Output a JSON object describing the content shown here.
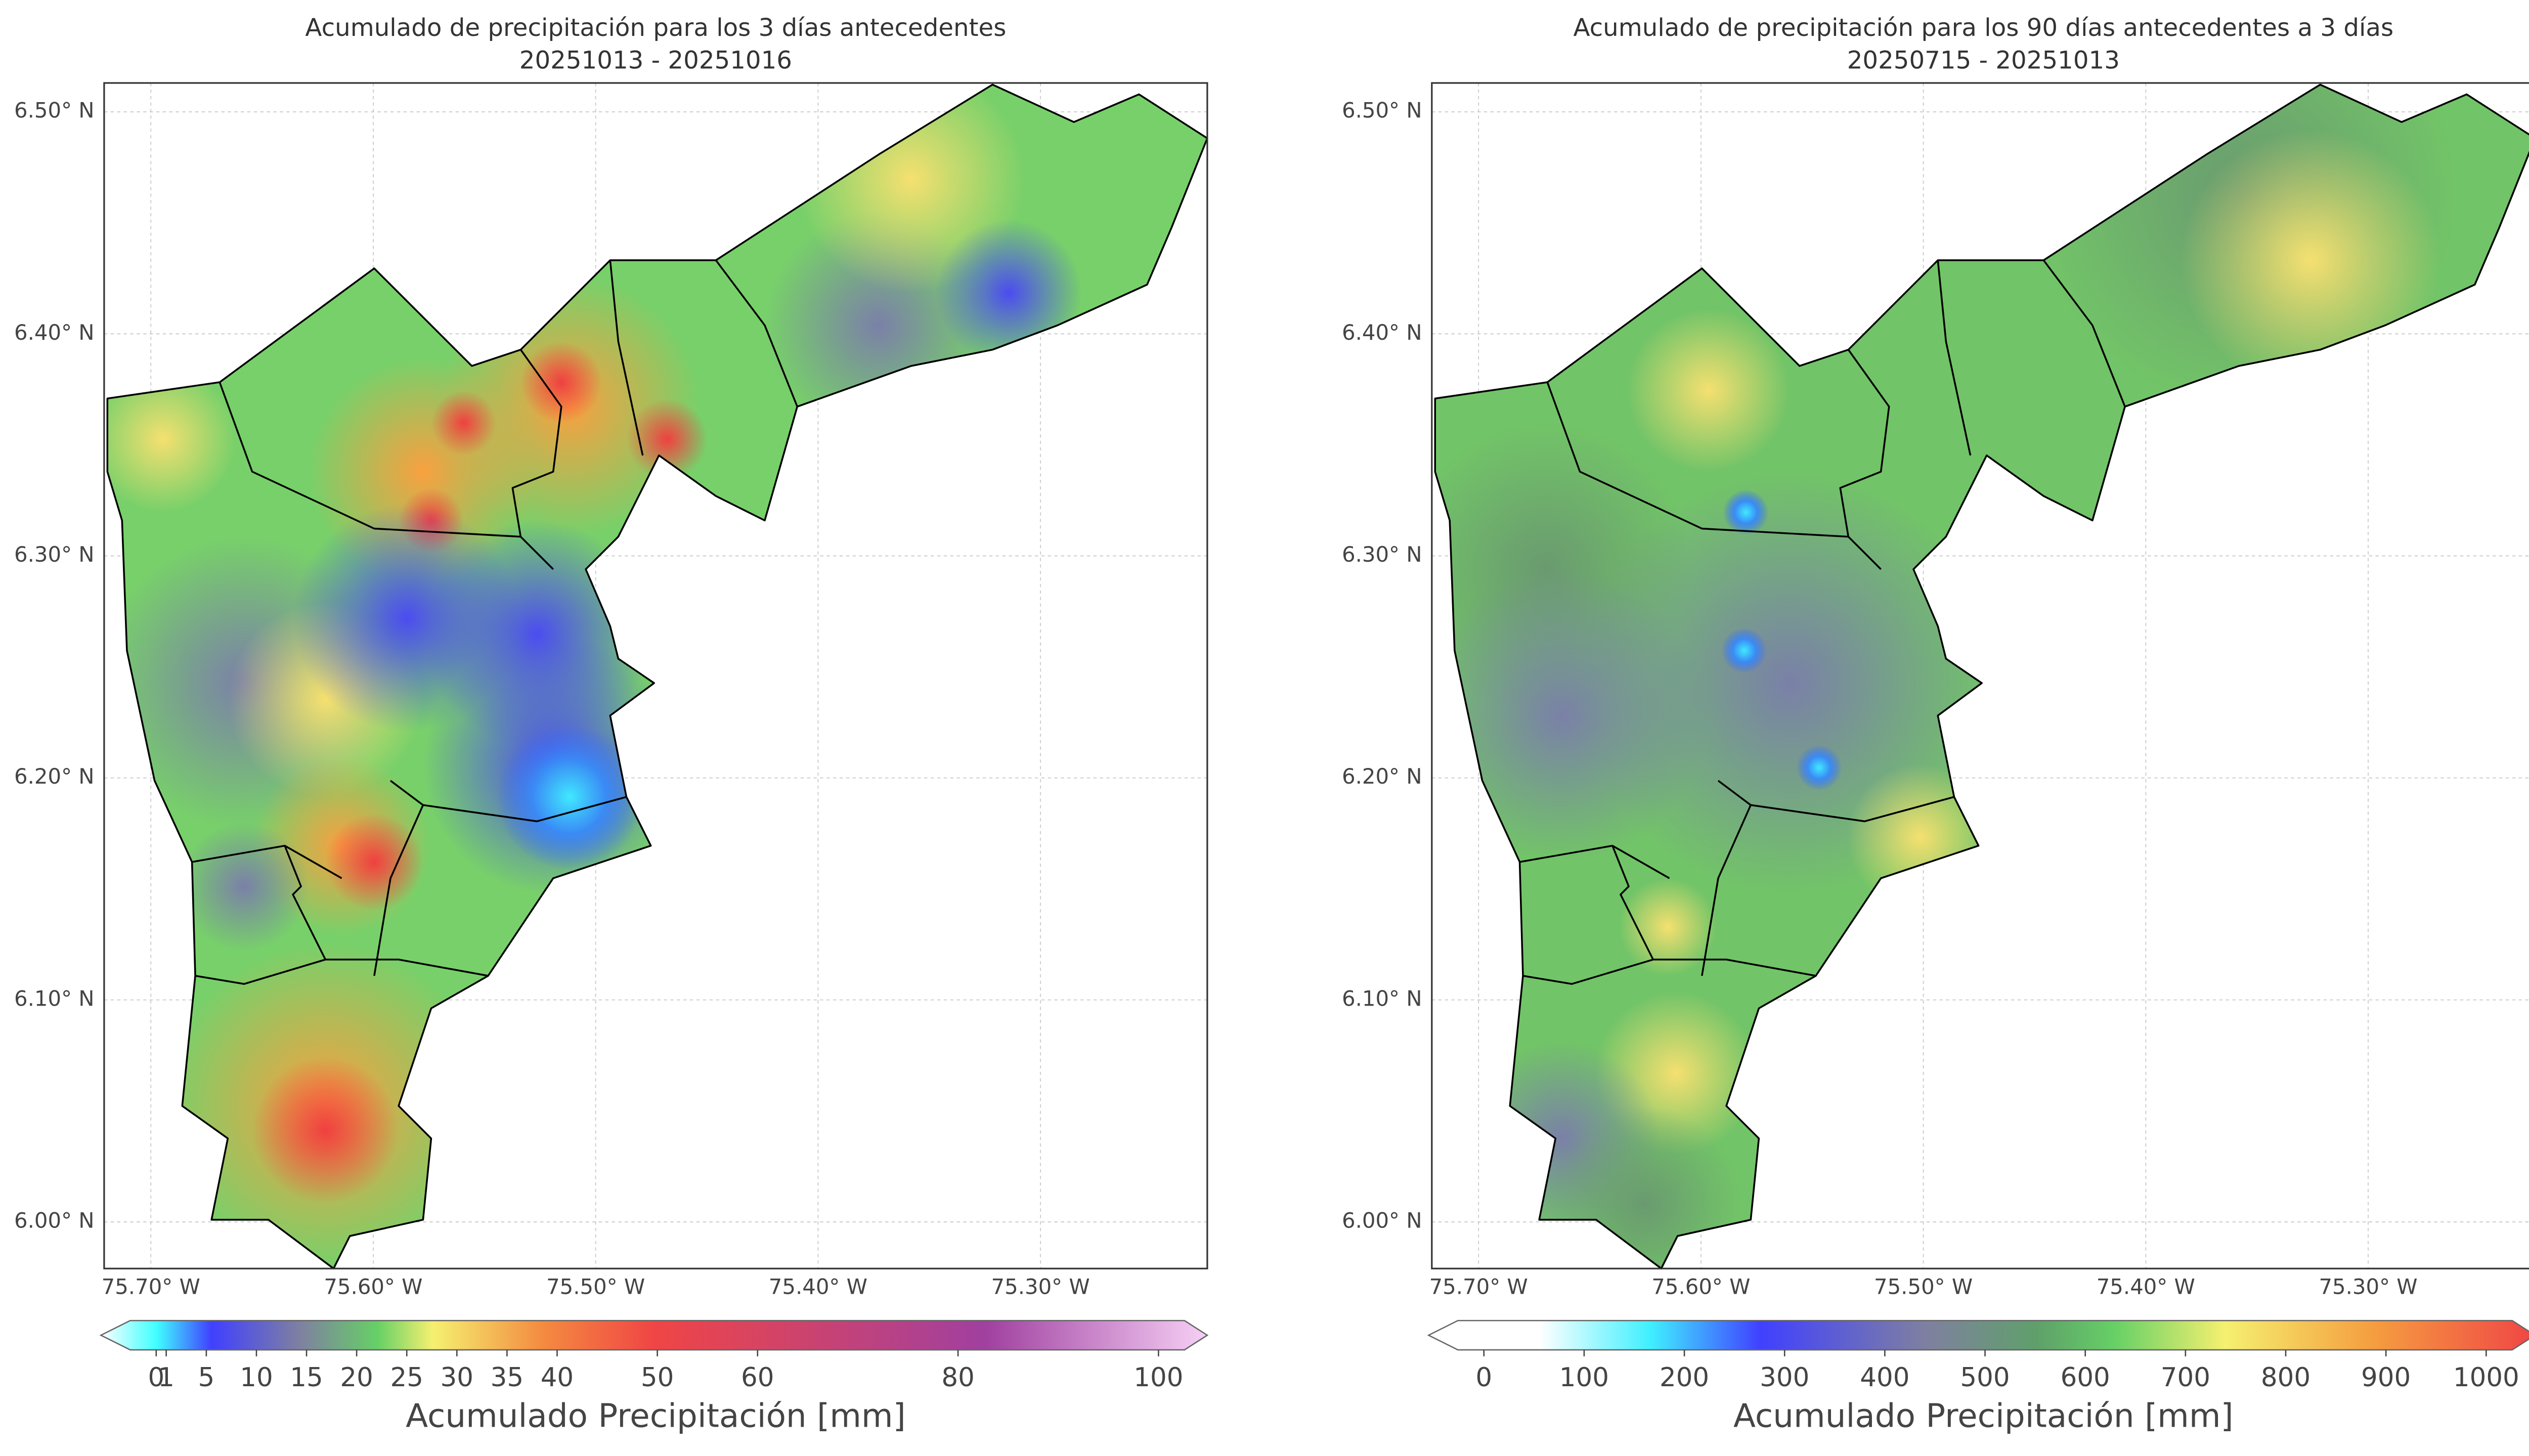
{
  "maps": [
    {
      "title": "Acumulado de precipitación para los 3 días antecedentes",
      "subtitle": "20251013 - 20251016",
      "xlim": [
        -75.721,
        -75.225
      ],
      "ylim": [
        5.979,
        6.513
      ],
      "xticks": [
        {
          "value": -75.7,
          "label": "75.70° W"
        },
        {
          "value": -75.6,
          "label": "75.60° W"
        },
        {
          "value": -75.5,
          "label": "75.50° W"
        },
        {
          "value": -75.4,
          "label": "75.40° W"
        },
        {
          "value": -75.3,
          "label": "75.30° W"
        }
      ],
      "yticks": [
        {
          "value": 6.5,
          "label": "6.50° N"
        },
        {
          "value": 6.4,
          "label": "6.40° N"
        },
        {
          "value": 6.3,
          "label": "6.30° N"
        },
        {
          "value": 6.2,
          "label": "6.20° N"
        },
        {
          "value": 6.1,
          "label": "6.10° N"
        },
        {
          "value": 6.0,
          "label": "6.00° N"
        }
      ],
      "colorbar": {
        "label": "Acumulado Precipitación [mm]",
        "lim": [
          0,
          100
        ],
        "ticks": [
          0,
          1,
          5,
          10,
          15,
          20,
          25,
          30,
          35,
          40,
          50,
          60,
          80,
          100
        ]
      }
    },
    {
      "title": "Acumulado de precipitación para los 90 días antecedentes a 3 días",
      "subtitle": "20250715 - 20251013",
      "xlim": [
        -75.721,
        -75.225
      ],
      "ylim": [
        5.979,
        6.513
      ],
      "xticks": [
        {
          "value": -75.7,
          "label": "75.70° W"
        },
        {
          "value": -75.6,
          "label": "75.60° W"
        },
        {
          "value": -75.5,
          "label": "75.50° W"
        },
        {
          "value": -75.4,
          "label": "75.40° W"
        },
        {
          "value": -75.3,
          "label": "75.30° W"
        }
      ],
      "yticks": [
        {
          "value": 6.5,
          "label": "6.50° N"
        },
        {
          "value": 6.4,
          "label": "6.40° N"
        },
        {
          "value": 6.3,
          "label": "6.30° N"
        },
        {
          "value": 6.2,
          "label": "6.20° N"
        },
        {
          "value": 6.1,
          "label": "6.10° N"
        },
        {
          "value": 6.0,
          "label": "6.00° N"
        }
      ],
      "colorbar": {
        "label": "Acumulado Precipitación [mm]",
        "lim": [
          0,
          1000
        ],
        "ticks": [
          0,
          100,
          200,
          300,
          400,
          500,
          600,
          700,
          800,
          900,
          1000
        ]
      }
    }
  ]
}
